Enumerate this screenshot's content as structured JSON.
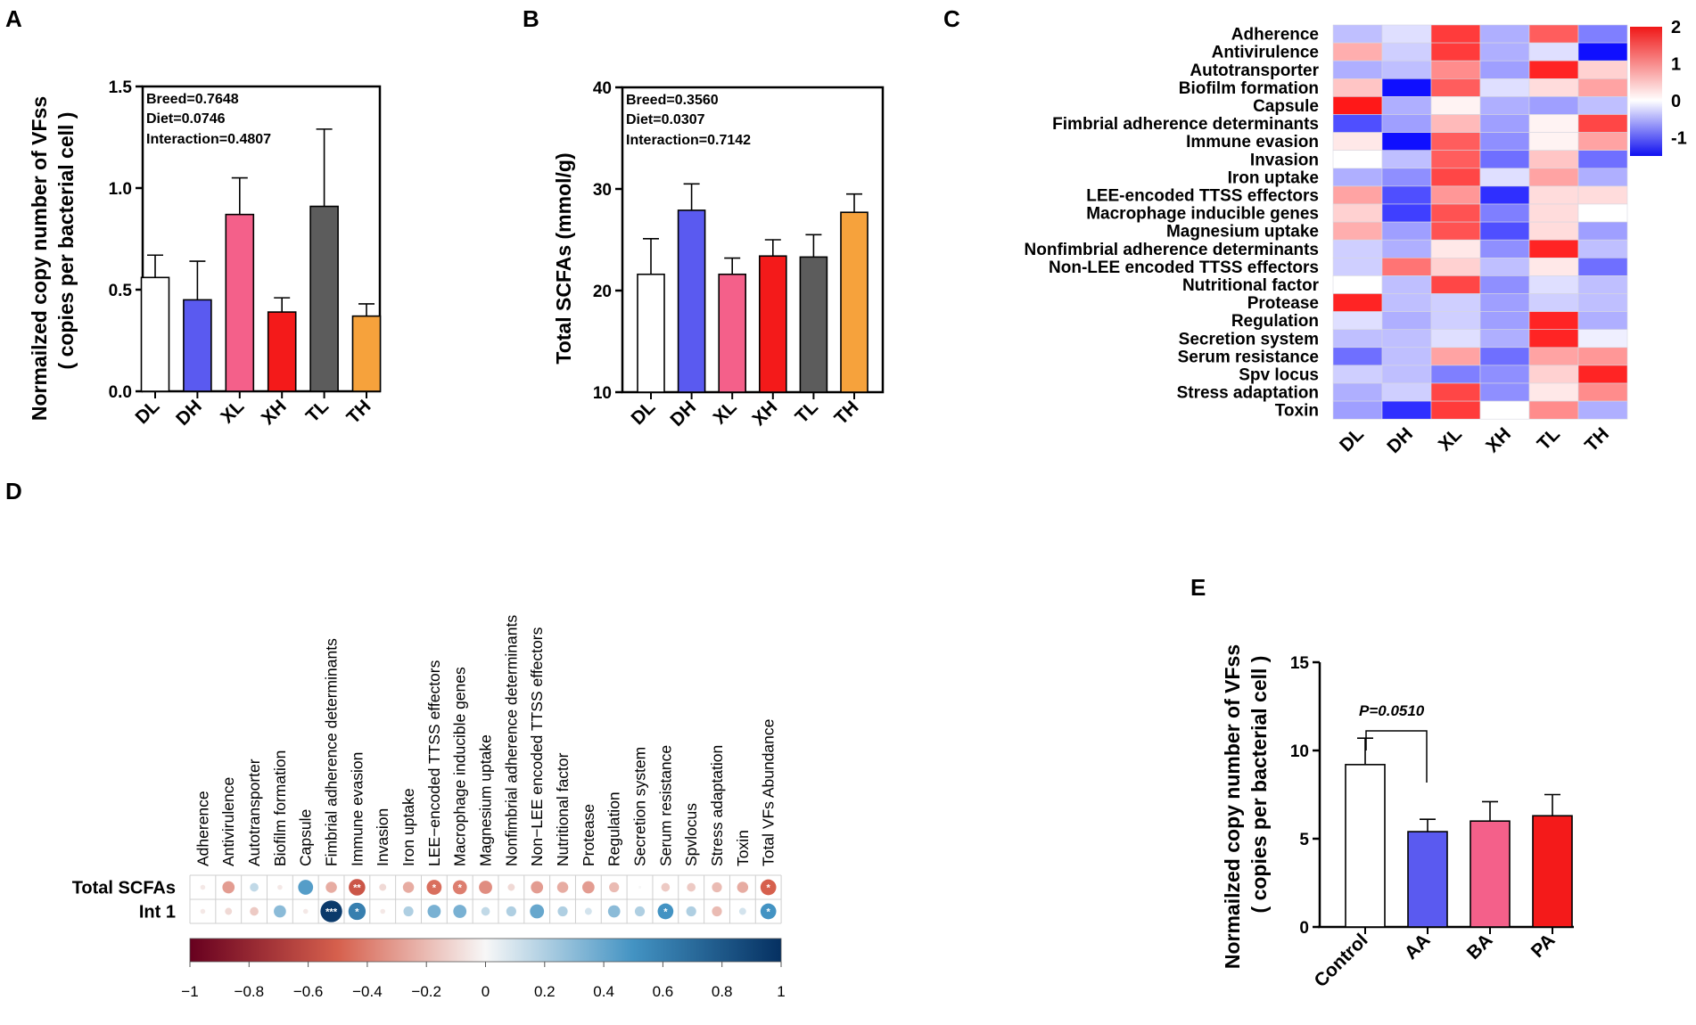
{
  "panels": {
    "A": {
      "label": "A",
      "chart_data": {
        "type": "bar",
        "categories": [
          "DL",
          "DH",
          "XL",
          "XH",
          "TL",
          "TH"
        ],
        "values": [
          0.56,
          0.45,
          0.87,
          0.39,
          0.91,
          0.37
        ],
        "errors": [
          0.11,
          0.19,
          0.18,
          0.07,
          0.38,
          0.06
        ],
        "colors": [
          "#ffffff",
          "#5a5af0",
          "#f4608a",
          "#f41a1a",
          "#5c5c5c",
          "#f6a23c"
        ],
        "ylabel_line1": "Normailzed copy number of VFss",
        "ylabel_line2": "( copies per bacterial cell )",
        "ylim": [
          0,
          1.5
        ],
        "yticks": [
          "0.0",
          "0.5",
          "1.0",
          "1.5"
        ],
        "annotations": [
          "Breed=0.7648",
          "Diet=0.0746",
          "Interaction=0.4807"
        ]
      }
    },
    "B": {
      "label": "B",
      "chart_data": {
        "type": "bar",
        "categories": [
          "DL",
          "DH",
          "XL",
          "XH",
          "TL",
          "TH"
        ],
        "values": [
          21.6,
          27.9,
          21.6,
          23.4,
          23.3,
          27.7
        ],
        "errors": [
          3.5,
          2.6,
          1.6,
          1.6,
          2.2,
          1.8
        ],
        "colors": [
          "#ffffff",
          "#5a5af0",
          "#f4608a",
          "#f41a1a",
          "#5c5c5c",
          "#f6a23c"
        ],
        "ylabel": "Total SCFAs (mmol/g)",
        "ylim": [
          10,
          40
        ],
        "yticks": [
          "10",
          "20",
          "30",
          "40"
        ],
        "annotations": [
          "Breed=0.3560",
          "Diet=0.0307",
          "Interaction=0.7142"
        ]
      }
    },
    "C": {
      "label": "C",
      "chart_data": {
        "type": "heatmap",
        "rows": [
          "Adherence",
          "Antivirulence",
          "Autotransporter",
          "Biofilm formation",
          "Capsule",
          "Fimbrial adherence determinants",
          "Immune evasion",
          "Invasion",
          "Iron uptake",
          "LEE-encoded TTSS effectors",
          "Macrophage inducible genes",
          "Magnesium uptake",
          "Nonfimbrial adherence determinants",
          "Non-LEE encoded TTSS effectors",
          "Nutritional factor",
          "Protease",
          "Regulation",
          "Secretion system",
          "Serum resistance",
          "Spv locus",
          "Stress adaptation",
          "Toxin"
        ],
        "columns": [
          "DL",
          "DH",
          "XL",
          "XH",
          "TL",
          "TH"
        ],
        "values": [
          [
            -0.4,
            -0.2,
            1.7,
            -0.5,
            1.4,
            -0.8
          ],
          [
            0.7,
            -0.3,
            1.7,
            -0.5,
            -0.2,
            -1.5
          ],
          [
            -0.5,
            -0.4,
            1.0,
            -0.6,
            1.9,
            0.4
          ],
          [
            0.5,
            -1.6,
            1.4,
            -0.2,
            0.3,
            0.8
          ],
          [
            2.0,
            -0.5,
            0.1,
            -0.5,
            -0.6,
            -0.4
          ],
          [
            -1.1,
            -0.6,
            0.6,
            -0.6,
            0.1,
            1.6
          ],
          [
            0.2,
            -1.5,
            1.4,
            -0.7,
            0.1,
            0.8
          ],
          [
            0.0,
            -0.4,
            1.4,
            -0.9,
            0.5,
            -0.9
          ],
          [
            -0.5,
            -0.7,
            1.6,
            -0.2,
            0.8,
            -0.5
          ],
          [
            0.8,
            -1.1,
            0.9,
            -1.3,
            0.3,
            0.3
          ],
          [
            0.4,
            -1.2,
            1.5,
            -0.8,
            0.3,
            0.0
          ],
          [
            0.7,
            -0.6,
            1.5,
            -1.1,
            0.3,
            -0.6
          ],
          [
            -0.3,
            -0.5,
            0.2,
            -0.7,
            1.9,
            -0.4
          ],
          [
            -0.3,
            1.2,
            0.4,
            -0.4,
            0.2,
            -0.9
          ],
          [
            0.0,
            -0.4,
            1.6,
            -0.7,
            -0.2,
            -0.4
          ],
          [
            1.9,
            -0.4,
            -0.3,
            -0.6,
            -0.3,
            -0.4
          ],
          [
            -0.2,
            -0.5,
            -0.3,
            -0.6,
            1.9,
            -0.5
          ],
          [
            -0.4,
            -0.4,
            -0.2,
            -0.5,
            1.9,
            -0.1
          ],
          [
            -0.9,
            -0.4,
            0.8,
            -0.9,
            0.8,
            0.9
          ],
          [
            -0.3,
            -0.4,
            -0.8,
            -0.7,
            0.4,
            1.9
          ],
          [
            -0.5,
            -0.3,
            1.6,
            -0.7,
            0.2,
            1.0
          ],
          [
            -0.6,
            -1.3,
            1.7,
            0.0,
            1.0,
            -0.5
          ]
        ],
        "colorbar": {
          "min": -1.5,
          "max": 2,
          "ticks": [
            "2",
            "1",
            "0",
            "-1"
          ]
        }
      }
    },
    "D": {
      "label": "D",
      "chart_data": {
        "type": "heatmap",
        "columns": [
          "Adherence",
          "Antivirulence",
          "Autotransporter",
          "Biofilm formation",
          "Capsule",
          "Fimbrial adherence determinants",
          "Immune evasion",
          "Invasion",
          "Iron uptake",
          "LEE−encoded TTSS effectors",
          "Macrophage inducible genes",
          "Magnesium uptake",
          "Nonfimbrial adherence determinants",
          "Non−LEE encoded TTSS effectors",
          "Nutritional factor",
          "Protease",
          "Regulation",
          "Secretion system",
          "Serum resistance",
          "Spvlocus",
          "Stress adaptation",
          "Toxin",
          "Total VFs Abundance"
        ],
        "rows": [
          "Total SCFAs",
          "Int 1"
        ],
        "values": [
          [
            -0.05,
            -0.3,
            0.15,
            -0.05,
            0.45,
            -0.25,
            -0.55,
            -0.1,
            -0.25,
            -0.45,
            -0.4,
            -0.35,
            -0.1,
            -0.3,
            -0.25,
            -0.3,
            -0.2,
            0.0,
            -0.15,
            -0.15,
            -0.2,
            -0.25,
            -0.5
          ],
          [
            -0.05,
            -0.1,
            -0.15,
            0.3,
            -0.05,
            0.95,
            0.6,
            -0.05,
            0.2,
            0.35,
            0.35,
            0.15,
            0.2,
            0.4,
            0.2,
            0.1,
            0.3,
            0.2,
            0.5,
            0.2,
            -0.2,
            0.1,
            0.5
          ]
        ],
        "stars": [
          [
            "",
            "",
            "",
            "",
            "",
            "",
            "**",
            "",
            "",
            "*",
            "*",
            "",
            "",
            "",
            "",
            "",
            "",
            "",
            "",
            "",
            "",
            "",
            "*"
          ],
          [
            "",
            "",
            "",
            "",
            "",
            "***",
            "*",
            "",
            "",
            "",
            "",
            "",
            "",
            "",
            "",
            "",
            "",
            "",
            "*",
            "",
            "",
            "",
            "*"
          ]
        ],
        "colorbar": {
          "min": -1,
          "max": 1,
          "ticks": [
            "−1",
            "−0.8",
            "−0.6",
            "−0.4",
            "−0.2",
            "0",
            "0.2",
            "0.4",
            "0.6",
            "0.8",
            "1"
          ]
        }
      }
    },
    "E": {
      "label": "E",
      "chart_data": {
        "type": "bar",
        "categories": [
          "Control",
          "AA",
          "BA",
          "PA"
        ],
        "values": [
          9.2,
          5.4,
          6.0,
          6.3
        ],
        "errors": [
          1.5,
          0.7,
          1.1,
          1.2
        ],
        "colors": [
          "#ffffff",
          "#5a5af0",
          "#f4608a",
          "#f41a1a"
        ],
        "ylabel_line1": "Normailzed copy number of VFss",
        "ylabel_line2": "( copies per bacterial cell )",
        "ylim": [
          0,
          15
        ],
        "yticks": [
          "0",
          "5",
          "10",
          "15"
        ],
        "annotation": "P=0.0510"
      }
    }
  }
}
